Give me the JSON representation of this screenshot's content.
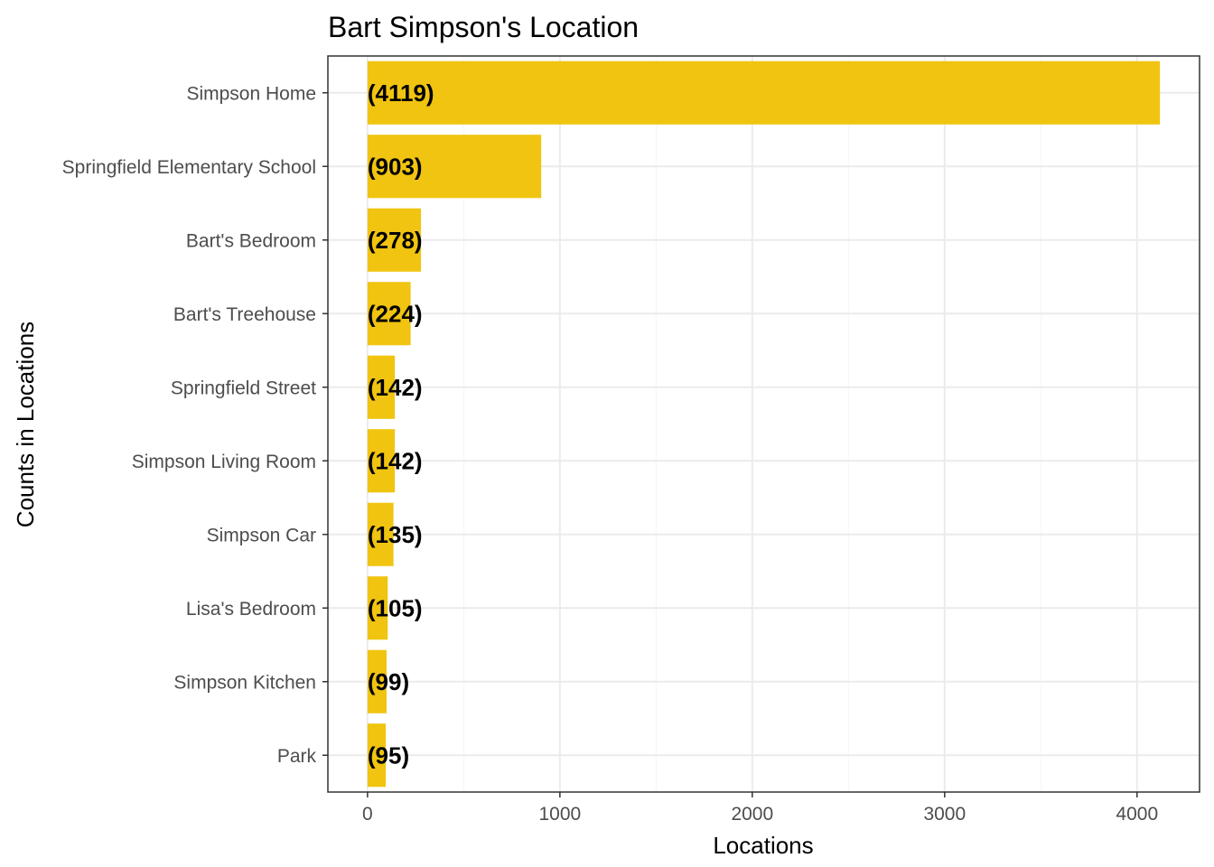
{
  "chart_data": {
    "type": "bar",
    "orientation": "horizontal",
    "title": "Bart Simpson's Location",
    "xlabel": "Locations",
    "ylabel": "Counts in Locations",
    "categories": [
      "Simpson Home",
      "Springfield Elementary School",
      "Bart's Bedroom",
      "Bart's Treehouse",
      "Springfield Street",
      "Simpson Living Room",
      "Simpson Car",
      "Lisa's Bedroom",
      "Simpson Kitchen",
      "Park"
    ],
    "values": [
      4119,
      903,
      278,
      224,
      142,
      142,
      135,
      105,
      99,
      95
    ],
    "data_labels": [
      "(4119)",
      "(903)",
      "(278)",
      "(224)",
      "(142)",
      "(142)",
      "(135)",
      "(105)",
      "(99)",
      "(95)"
    ],
    "x_ticks": [
      0,
      1000,
      2000,
      3000,
      4000
    ],
    "x_tick_labels": [
      "0",
      "1000",
      "2000",
      "3000",
      "4000"
    ],
    "xlim": [
      -206,
      4325
    ],
    "grid": true,
    "legend": "none",
    "colors": {
      "bar": "#F0C410",
      "grid_major": "#EBEBEB",
      "grid_minor": "#F5F5F5",
      "panel_border": "#333333",
      "tick_text": "#4D4D4D"
    }
  }
}
